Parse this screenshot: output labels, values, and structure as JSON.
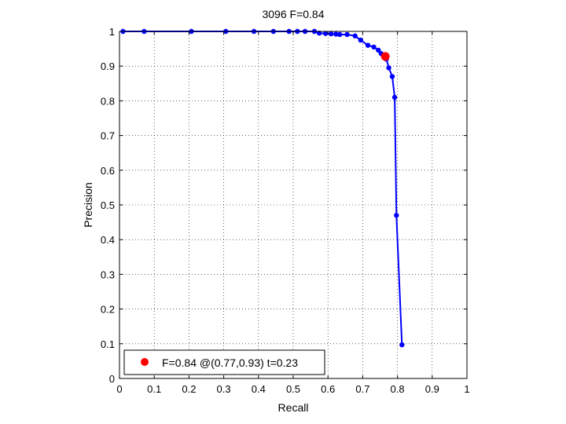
{
  "chart_data": {
    "type": "line",
    "title": "3096 F=0.84",
    "xlabel": "Recall",
    "ylabel": "Precision",
    "xlim": [
      0,
      1
    ],
    "ylim": [
      0,
      1
    ],
    "grid": true,
    "legend_position": "bottom-left",
    "xticks": [
      "0",
      "0.1",
      "0.2",
      "0.3",
      "0.4",
      "0.5",
      "0.6",
      "0.7",
      "0.8",
      "0.9",
      "1"
    ],
    "yticks": [
      "0",
      "0.1",
      "0.2",
      "0.3",
      "0.4",
      "0.5",
      "0.6",
      "0.7",
      "0.8",
      "0.9",
      "1"
    ],
    "series": [
      {
        "color": "#0000ff",
        "points": [
          [
            0.01,
            1.0
          ],
          [
            0.071,
            1.0
          ],
          [
            0.207,
            1.0
          ],
          [
            0.306,
            1.0
          ],
          [
            0.387,
            1.0
          ],
          [
            0.443,
            1.0
          ],
          [
            0.488,
            1.0
          ],
          [
            0.512,
            1.0
          ],
          [
            0.534,
            1.0
          ],
          [
            0.561,
            1.0
          ],
          [
            0.575,
            0.995
          ],
          [
            0.593,
            0.994
          ],
          [
            0.609,
            0.993
          ],
          [
            0.623,
            0.992
          ],
          [
            0.634,
            0.991
          ],
          [
            0.655,
            0.991
          ],
          [
            0.678,
            0.987
          ],
          [
            0.694,
            0.975
          ],
          [
            0.715,
            0.96
          ],
          [
            0.732,
            0.955
          ],
          [
            0.745,
            0.946
          ],
          [
            0.753,
            0.936
          ],
          [
            0.768,
            0.92
          ],
          [
            0.775,
            0.895
          ],
          [
            0.785,
            0.87
          ],
          [
            0.792,
            0.81
          ],
          [
            0.797,
            0.47
          ],
          [
            0.813,
            0.097
          ]
        ]
      }
    ],
    "highlight": {
      "label": "F=0.84 @(0.77,0.93) t=0.23",
      "x": 0.765,
      "y": 0.928,
      "color": "#ff0000"
    }
  }
}
